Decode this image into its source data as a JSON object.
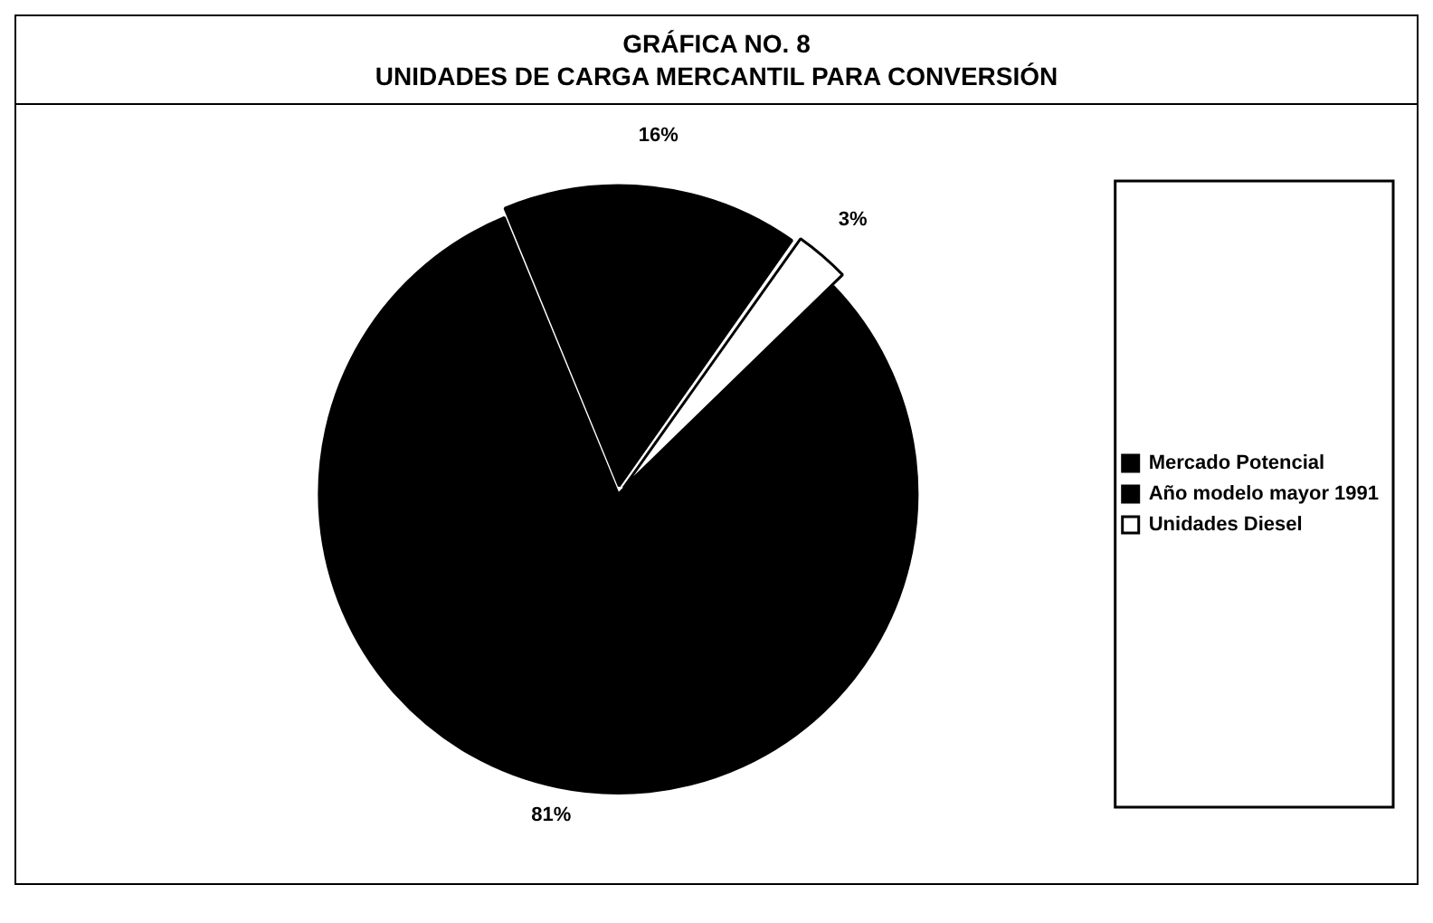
{
  "chart_data": {
    "type": "pie",
    "title": "GRÁFICA NO. 8",
    "subtitle": "UNIDADES DE CARGA MERCANTIL PARA CONVERSIÓN",
    "categories": [
      "Mercado Potencial",
      "Año modelo mayor 1991",
      "Unidades Diesel"
    ],
    "values": [
      81,
      16,
      3
    ],
    "colors": [
      "#000000",
      "#000000",
      "#ffffff"
    ],
    "value_labels": [
      "81%",
      "16%",
      "3%"
    ],
    "legend": "right"
  }
}
